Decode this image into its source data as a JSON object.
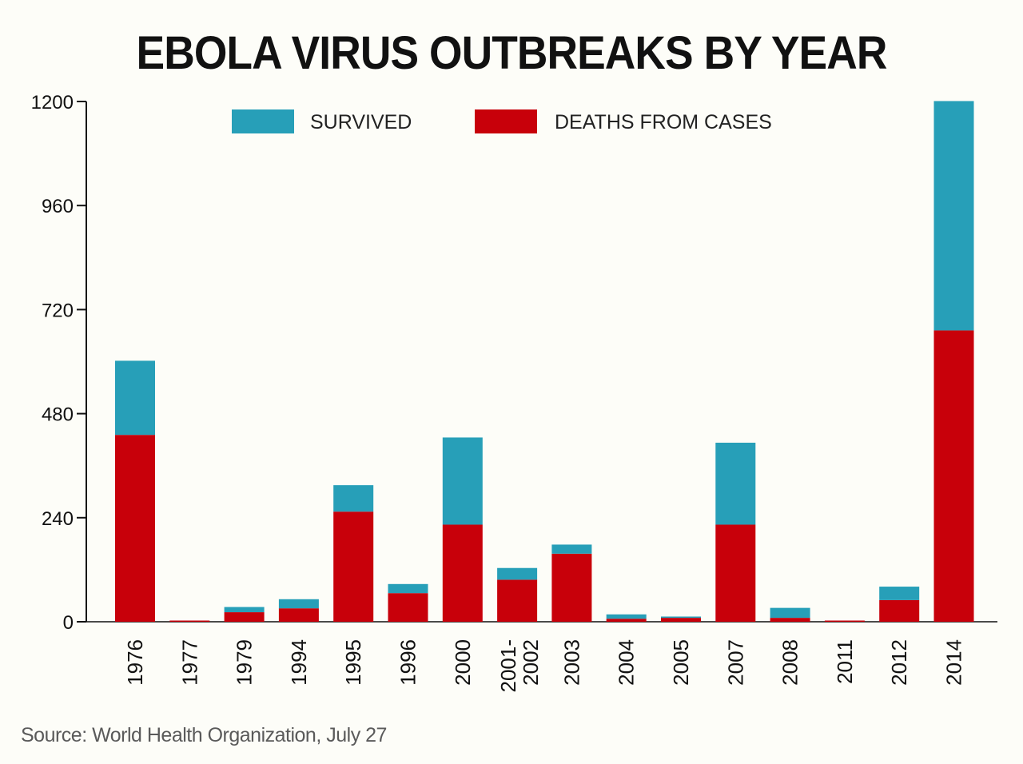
{
  "chart_data": {
    "type": "bar",
    "stacked": true,
    "title": "EBOLA VIRUS OUTBREAKS BY YEAR",
    "xlabel": "",
    "ylabel": "",
    "ylim": [
      0,
      1200
    ],
    "yticks": [
      0,
      240,
      480,
      720,
      960,
      1200
    ],
    "grid": false,
    "legend_placement": "top-center",
    "categories": [
      "1976",
      "1977",
      "1979",
      "1994",
      "1995",
      "1996",
      "2000",
      "2001-2002",
      "2003",
      "2004",
      "2005",
      "2007",
      "2008",
      "2011",
      "2012",
      "2014"
    ],
    "series": [
      {
        "name": "DEATHS FROM CASES",
        "color": "#c8000a",
        "values": [
          431,
          1,
          22,
          31,
          254,
          66,
          224,
          97,
          157,
          7,
          9,
          224,
          9,
          1,
          50,
          672
        ]
      },
      {
        "name": "SURVIVED",
        "color": "#279fb8",
        "values": [
          171,
          0,
          12,
          21,
          61,
          21,
          201,
          27,
          21,
          10,
          3,
          189,
          23,
          0,
          31,
          529
        ]
      }
    ],
    "legend_order": [
      "SURVIVED",
      "DEATHS FROM CASES"
    ],
    "source": "Source: World Health Organization, July 27"
  }
}
